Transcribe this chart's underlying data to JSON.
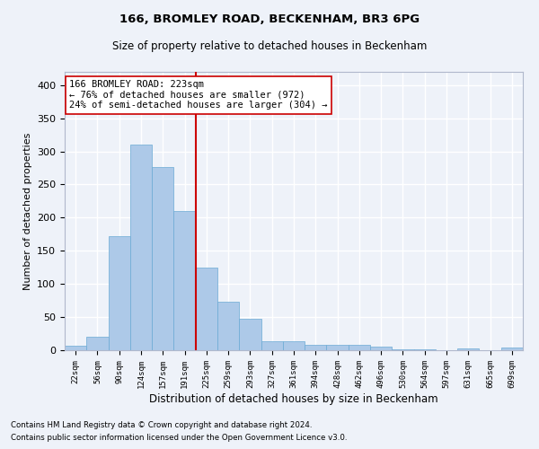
{
  "title1": "166, BROMLEY ROAD, BECKENHAM, BR3 6PG",
  "title2": "Size of property relative to detached houses in Beckenham",
  "xlabel": "Distribution of detached houses by size in Beckenham",
  "ylabel": "Number of detached properties",
  "footnote1": "Contains HM Land Registry data © Crown copyright and database right 2024.",
  "footnote2": "Contains public sector information licensed under the Open Government Licence v3.0.",
  "bar_labels": [
    "22sqm",
    "56sqm",
    "90sqm",
    "124sqm",
    "157sqm",
    "191sqm",
    "225sqm",
    "259sqm",
    "293sqm",
    "327sqm",
    "361sqm",
    "394sqm",
    "428sqm",
    "462sqm",
    "496sqm",
    "530sqm",
    "564sqm",
    "597sqm",
    "631sqm",
    "665sqm",
    "699sqm"
  ],
  "bar_heights": [
    7,
    20,
    172,
    310,
    276,
    210,
    125,
    73,
    48,
    14,
    13,
    8,
    8,
    8,
    5,
    2,
    1,
    0,
    3,
    0,
    4
  ],
  "bar_color": "#adc9e8",
  "bar_edge_color": "#6aaad4",
  "property_label": "166 BROMLEY ROAD: 223sqm",
  "annotation_line1": "← 76% of detached houses are smaller (972)",
  "annotation_line2": "24% of semi-detached houses are larger (304) →",
  "vline_color": "#cc0000",
  "vline_bar_index": 6,
  "ylim": [
    0,
    420
  ],
  "yticks": [
    0,
    50,
    100,
    150,
    200,
    250,
    300,
    350,
    400
  ],
  "background_color": "#eef2f9",
  "grid_color": "#ffffff",
  "annotation_box_color": "#ffffff",
  "annotation_box_edge": "#cc0000"
}
